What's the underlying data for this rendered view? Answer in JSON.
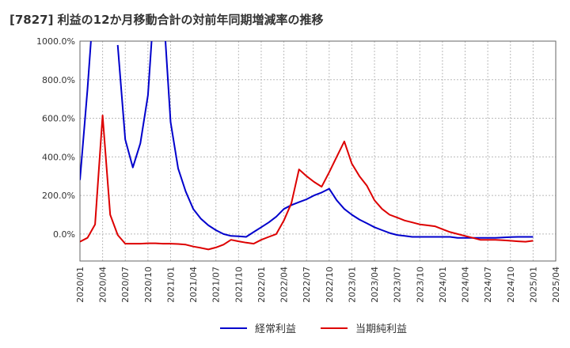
{
  "chart_data": {
    "type": "line",
    "title": "[7827]  利益の12か月移動合計の対前年同期増減率の推移",
    "xlabel": "",
    "ylabel": "",
    "ylim": [
      -140,
      1000
    ],
    "yticks": [
      0,
      200,
      400,
      600,
      800,
      1000
    ],
    "ytick_labels": [
      "0.0%",
      "200.0%",
      "400.0%",
      "600.0%",
      "800.0%",
      "1000.0%"
    ],
    "xlim": [
      "2020-01",
      "2025-04"
    ],
    "xtick_labels": [
      "2020/01",
      "2020/04",
      "2020/07",
      "2020/10",
      "2021/01",
      "2021/04",
      "2021/07",
      "2021/10",
      "2022/01",
      "2022/04",
      "2022/07",
      "2022/10",
      "2023/01",
      "2023/04",
      "2023/07",
      "2023/10",
      "2024/01",
      "2024/04",
      "2024/07",
      "2024/10",
      "2025/01",
      "2025/04"
    ],
    "grid": true,
    "legend_position": "bottom",
    "series": [
      {
        "name": "経常利益",
        "color": "#0000cc",
        "x": [
          "2020-01",
          "2020-02",
          "2020-03",
          "2020-04",
          "2020-05",
          "2020-06",
          "2020-07",
          "2020-08",
          "2020-09",
          "2020-10",
          "2020-11",
          "2020-12",
          "2021-01",
          "2021-02",
          "2021-03",
          "2021-04",
          "2021-05",
          "2021-06",
          "2021-07",
          "2021-08",
          "2021-09",
          "2021-10",
          "2021-11",
          "2021-12",
          "2022-01",
          "2022-02",
          "2022-03",
          "2022-04",
          "2022-05",
          "2022-06",
          "2022-07",
          "2022-08",
          "2022-09",
          "2022-10",
          "2022-11",
          "2022-12",
          "2023-01",
          "2023-02",
          "2023-03",
          "2023-04",
          "2023-05",
          "2023-06",
          "2023-07",
          "2023-08",
          "2023-09",
          "2023-10",
          "2023-11",
          "2023-12",
          "2024-01",
          "2024-02",
          "2024-03",
          "2024-04",
          "2024-05",
          "2024-06",
          "2024-07",
          "2024-08",
          "2024-09",
          "2024-10",
          "2024-11",
          "2024-12",
          "2025-01"
        ],
        "values": [
          280,
          750,
          1300,
          null,
          null,
          980,
          490,
          345,
          470,
          720,
          1300,
          1200,
          580,
          340,
          220,
          130,
          80,
          45,
          20,
          0,
          -10,
          -12,
          -15,
          10,
          35,
          60,
          90,
          130,
          150,
          165,
          180,
          200,
          215,
          235,
          175,
          130,
          100,
          75,
          55,
          35,
          20,
          5,
          -5,
          -10,
          -15,
          -15,
          -15,
          -15,
          -15,
          -15,
          -20,
          -20,
          -20,
          -20,
          -20,
          -20,
          -18,
          -16,
          -15,
          -15,
          -15
        ]
      },
      {
        "name": "当期純利益",
        "color": "#dd0000",
        "x": [
          "2020-01",
          "2020-02",
          "2020-03",
          "2020-04",
          "2020-05",
          "2020-06",
          "2020-07",
          "2020-08",
          "2020-09",
          "2020-10",
          "2020-11",
          "2020-12",
          "2021-01",
          "2021-02",
          "2021-03",
          "2021-04",
          "2021-05",
          "2021-06",
          "2021-07",
          "2021-08",
          "2021-09",
          "2021-10",
          "2021-11",
          "2021-12",
          "2022-01",
          "2022-02",
          "2022-03",
          "2022-04",
          "2022-05",
          "2022-06",
          "2022-07",
          "2022-08",
          "2022-09",
          "2022-10",
          "2022-11",
          "2022-12",
          "2023-01",
          "2023-02",
          "2023-03",
          "2023-04",
          "2023-05",
          "2023-06",
          "2023-07",
          "2023-08",
          "2023-09",
          "2023-10",
          "2023-11",
          "2023-12",
          "2024-01",
          "2024-02",
          "2024-03",
          "2024-04",
          "2024-05",
          "2024-06",
          "2024-07",
          "2024-08",
          "2024-09",
          "2024-10",
          "2024-11",
          "2024-12",
          "2025-01"
        ],
        "values": [
          -40,
          -20,
          50,
          615,
          100,
          -5,
          -50,
          -50,
          -50,
          -48,
          -48,
          -50,
          -50,
          -52,
          -55,
          -65,
          -72,
          -80,
          -70,
          -55,
          -30,
          -38,
          -45,
          -50,
          -30,
          -15,
          0,
          70,
          160,
          335,
          300,
          270,
          245,
          320,
          400,
          480,
          365,
          300,
          250,
          175,
          130,
          100,
          85,
          70,
          60,
          50,
          45,
          40,
          25,
          10,
          0,
          -10,
          -20,
          -30,
          -30,
          -30,
          -32,
          -35,
          -38,
          -40,
          -35
        ]
      }
    ]
  }
}
